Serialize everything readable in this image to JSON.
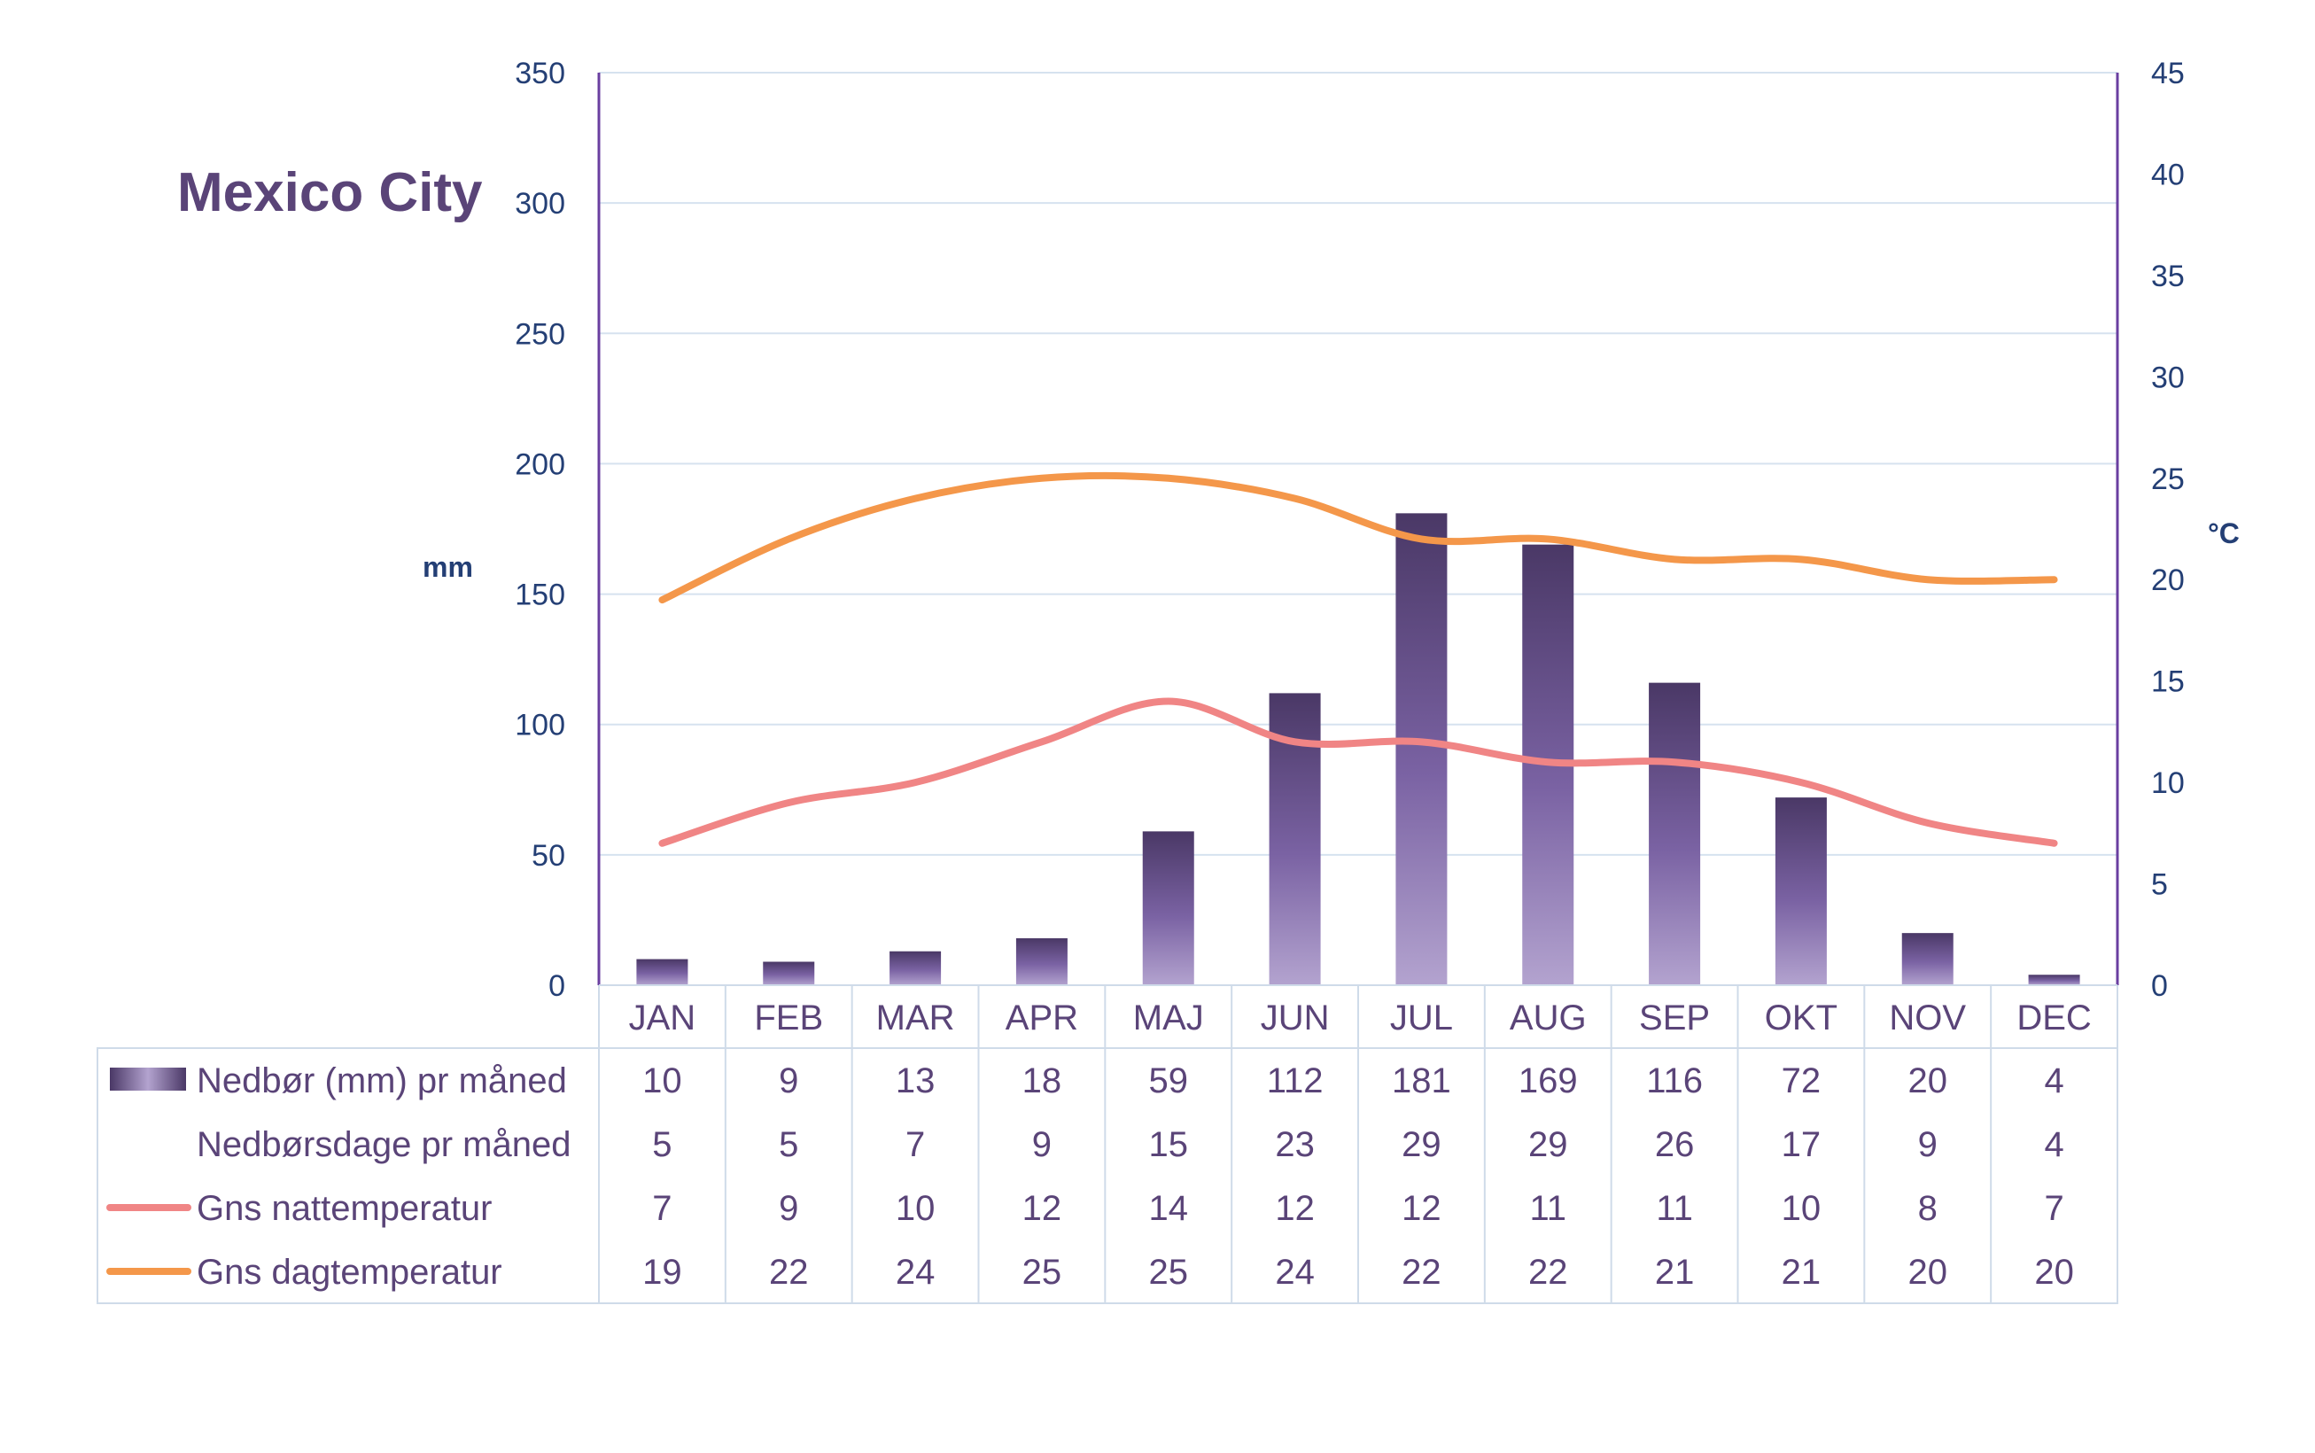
{
  "chart_data": {
    "type": "bar",
    "title": "Mexico City",
    "ylabel": "mm",
    "y2label": "°C",
    "ylim": [
      0,
      350
    ],
    "y2lim": [
      0,
      45
    ],
    "yticks": [
      0,
      50,
      100,
      150,
      200,
      250,
      300,
      350
    ],
    "y2ticks": [
      0,
      5,
      10,
      15,
      20,
      25,
      30,
      35,
      40,
      45
    ],
    "categories": [
      "JAN",
      "FEB",
      "MAR",
      "APR",
      "MAJ",
      "JUN",
      "JUL",
      "AUG",
      "SEP",
      "OKT",
      "NOV",
      "DEC"
    ],
    "grid": true,
    "legend": "data-table-bottom",
    "series": [
      {
        "name": "Nedbør (mm) pr måned",
        "type": "bar",
        "axis": "left",
        "color": "#6b5590",
        "values": [
          10,
          9,
          13,
          18,
          59,
          112,
          181,
          169,
          116,
          72,
          20,
          4
        ]
      },
      {
        "name": "Nedbørsdage pr måned",
        "type": "table",
        "axis": "none",
        "values": [
          5,
          5,
          7,
          9,
          15,
          23,
          29,
          29,
          26,
          17,
          9,
          4
        ]
      },
      {
        "name": "Gns nattemperatur",
        "type": "line",
        "axis": "right",
        "color": "#f08585",
        "values": [
          7,
          9,
          10,
          12,
          14,
          12,
          12,
          11,
          11,
          10,
          8,
          7
        ]
      },
      {
        "name": "Gns dagtemperatur",
        "type": "line",
        "axis": "right",
        "color": "#f4974a",
        "values": [
          19,
          22,
          24,
          25,
          25,
          24,
          22,
          22,
          21,
          21,
          20,
          20
        ]
      }
    ]
  }
}
